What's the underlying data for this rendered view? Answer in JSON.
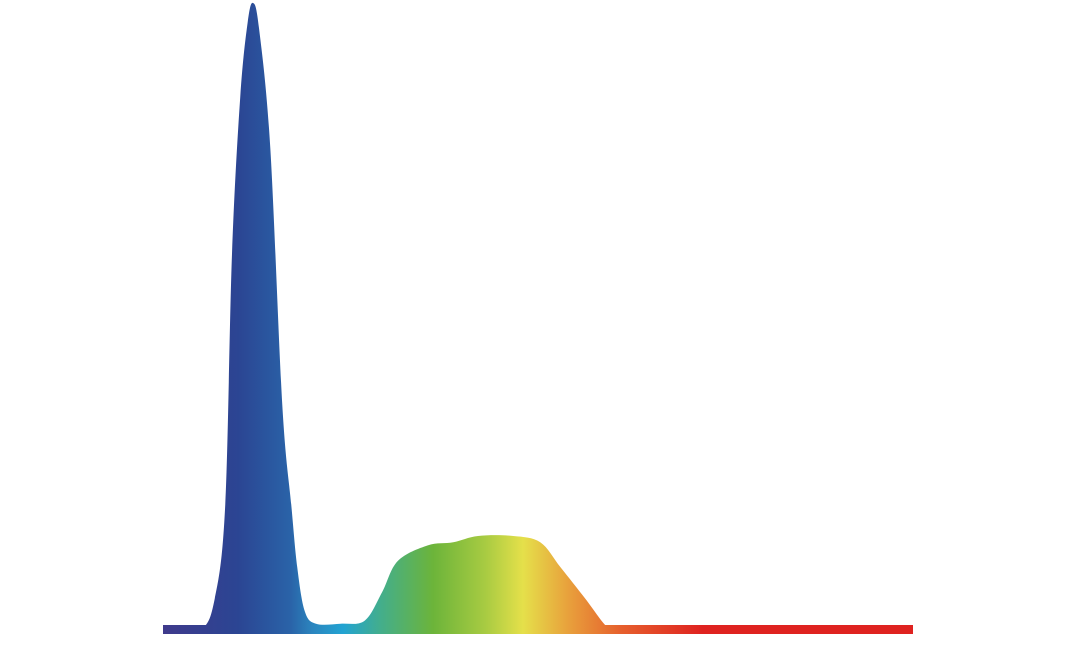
{
  "chart_data": {
    "type": "area",
    "title": "",
    "xlabel": "",
    "ylabel": "",
    "grid": false,
    "legend": "none",
    "xlim": [
      0,
      100
    ],
    "ylim": [
      0,
      1
    ],
    "fill": "spectral-gradient",
    "gradient_colors": [
      {
        "at": 0.0,
        "color": "#3f3a8c"
      },
      {
        "at": 0.1,
        "color": "#2b4593"
      },
      {
        "at": 0.17,
        "color": "#2a63a8"
      },
      {
        "at": 0.2,
        "color": "#2b86bf"
      },
      {
        "at": 0.24,
        "color": "#22a3d2"
      },
      {
        "at": 0.29,
        "color": "#43ae8c"
      },
      {
        "at": 0.36,
        "color": "#6cb43a"
      },
      {
        "at": 0.43,
        "color": "#a8cb42"
      },
      {
        "at": 0.48,
        "color": "#e5e04a"
      },
      {
        "at": 0.54,
        "color": "#e8a13c"
      },
      {
        "at": 0.61,
        "color": "#e6602d"
      },
      {
        "at": 0.72,
        "color": "#df2220"
      },
      {
        "at": 1.0,
        "color": "#df2220"
      }
    ],
    "series": [
      {
        "x": [
          0,
          4.9,
          6.9,
          8.3,
          9.2,
          10.3,
          11.3,
          12.0,
          12.8,
          14.3,
          15.9,
          17.1,
          17.9,
          18.9,
          20.4,
          23.7,
          26.9,
          29.2,
          31.3,
          35.3,
          38.7,
          42.0,
          46.7,
          50.3,
          53.0,
          56.3,
          59.2,
          60.9,
          100
        ],
        "y": [
          0,
          0,
          0.05,
          0.2,
          0.6,
          0.85,
          0.97,
          1.0,
          0.96,
          0.77,
          0.36,
          0.2,
          0.1,
          0.03,
          0.01,
          0.01,
          0.015,
          0.06,
          0.11,
          0.135,
          0.14,
          0.15,
          0.15,
          0.14,
          0.1,
          0.05,
          0.005,
          0,
          0
        ]
      }
    ]
  }
}
